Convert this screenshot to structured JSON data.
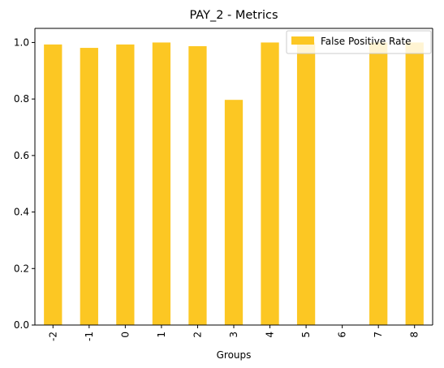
{
  "chart_data": {
    "type": "bar",
    "title": "PAY_2 - Metrics",
    "xlabel": "Groups",
    "ylabel": "",
    "categories": [
      "-2",
      "-1",
      "0",
      "1",
      "2",
      "3",
      "4",
      "5",
      "6",
      "7",
      "8"
    ],
    "series": [
      {
        "name": "False Positive Rate",
        "color": "#fcc723",
        "values": [
          0.993,
          0.981,
          0.993,
          1.0,
          0.987,
          0.797,
          1.0,
          1.0,
          0.0,
          1.0,
          1.0
        ]
      }
    ],
    "ylim": [
      0,
      1.05
    ],
    "yticks": [
      "0.0",
      "0.2",
      "0.4",
      "0.6",
      "0.8",
      "1.0"
    ],
    "grid": false,
    "legend_position": "top-right"
  }
}
